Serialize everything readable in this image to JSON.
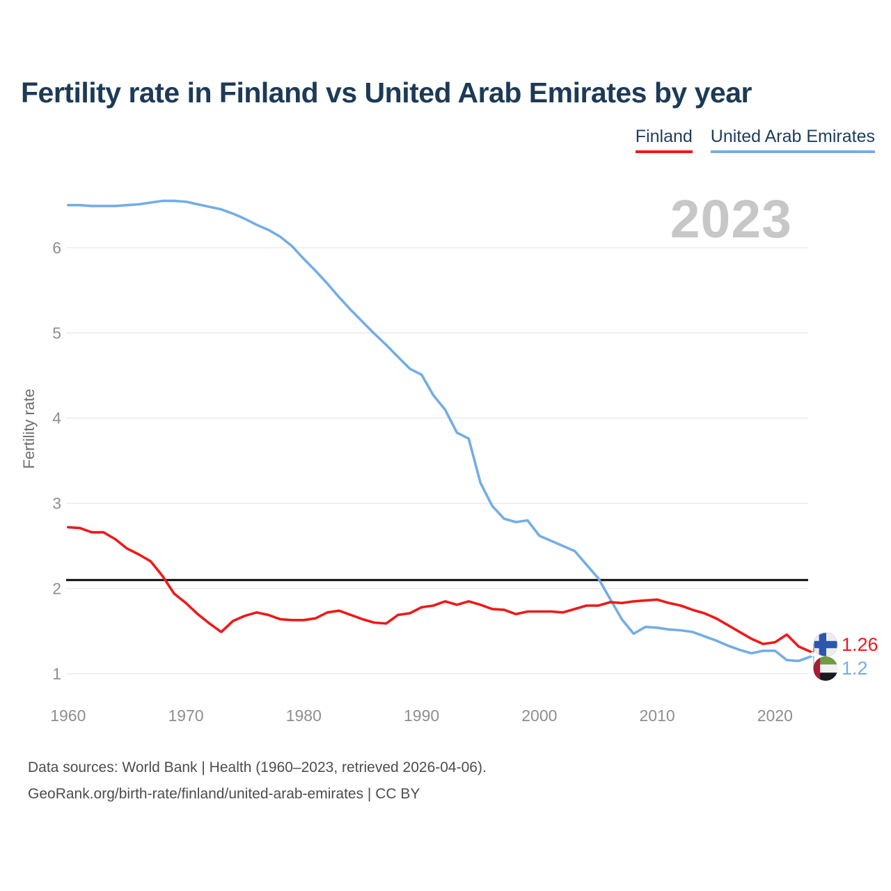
{
  "header": {
    "title": "Fertility rate in Finland vs United Arab Emirates by year"
  },
  "legend": {
    "finland": {
      "label": "Finland"
    },
    "uae": {
      "label": "United Arab Emirates"
    }
  },
  "watermark": "2023",
  "axis": {
    "y_label": "Fertility rate"
  },
  "end_labels": {
    "finland": {
      "value": "1.26",
      "flag": {
        "bg": "#ededed",
        "cross": "#2d56ad",
        "border": "#d9d9d9"
      }
    },
    "uae": {
      "value": "1.2",
      "flag": {
        "band": "#a81c38",
        "green": "#6e9b45",
        "white": "#f2f2f2",
        "black": "#1a1a20"
      }
    }
  },
  "footer": {
    "line1": "Data sources: World Bank | Health (1960–2023, retrieved 2026-04-06).",
    "line2": "GeoRank.org/birth-rate/finland/united-arab-emirates | CC BY"
  },
  "chart_data": {
    "type": "line",
    "title": "Fertility rate in Finland vs United Arab Emirates by year",
    "xlabel": "",
    "ylabel": "Fertility rate",
    "xlim": [
      1960,
      2023
    ],
    "ylim": [
      0.8,
      6.8
    ],
    "grid": true,
    "legend_position": "top-right",
    "x_ticks": [
      1960,
      1970,
      1980,
      1990,
      2000,
      2010,
      2020
    ],
    "y_ticks": [
      1,
      2,
      3,
      4,
      5,
      6
    ],
    "reference_line": {
      "value": 2.1,
      "color": "#0a0a0a"
    },
    "x": [
      1960,
      1961,
      1962,
      1963,
      1964,
      1965,
      1966,
      1967,
      1968,
      1969,
      1970,
      1971,
      1972,
      1973,
      1974,
      1975,
      1976,
      1977,
      1978,
      1979,
      1980,
      1981,
      1982,
      1983,
      1984,
      1985,
      1986,
      1987,
      1988,
      1989,
      1990,
      1991,
      1992,
      1993,
      1994,
      1995,
      1996,
      1997,
      1998,
      1999,
      2000,
      2001,
      2002,
      2003,
      2004,
      2005,
      2006,
      2007,
      2008,
      2009,
      2010,
      2011,
      2012,
      2013,
      2014,
      2015,
      2016,
      2017,
      2018,
      2019,
      2020,
      2021,
      2022,
      2023
    ],
    "series": [
      {
        "name": "United Arab Emirates",
        "color": "#73ade4",
        "end_value": 1.2,
        "values": [
          6.5,
          6.5,
          6.49,
          6.49,
          6.49,
          6.5,
          6.51,
          6.53,
          6.55,
          6.55,
          6.54,
          6.51,
          6.48,
          6.45,
          6.4,
          6.34,
          6.27,
          6.21,
          6.13,
          6.02,
          5.87,
          5.73,
          5.58,
          5.42,
          5.27,
          5.13,
          4.99,
          4.86,
          4.72,
          4.58,
          4.51,
          4.27,
          4.1,
          3.83,
          3.76,
          3.24,
          2.97,
          2.82,
          2.78,
          2.8,
          2.62,
          2.56,
          2.5,
          2.44,
          2.28,
          2.12,
          1.88,
          1.64,
          1.47,
          1.55,
          1.54,
          1.52,
          1.51,
          1.49,
          1.44,
          1.39,
          1.33,
          1.28,
          1.24,
          1.27,
          1.27,
          1.16,
          1.15,
          1.2
        ]
      },
      {
        "name": "Finland",
        "color": "#f01818",
        "end_value": 1.26,
        "values": [
          2.72,
          2.71,
          2.66,
          2.66,
          2.58,
          2.47,
          2.4,
          2.32,
          2.15,
          1.94,
          1.83,
          1.7,
          1.59,
          1.49,
          1.62,
          1.68,
          1.72,
          1.69,
          1.64,
          1.63,
          1.63,
          1.65,
          1.72,
          1.74,
          1.69,
          1.64,
          1.6,
          1.59,
          1.69,
          1.71,
          1.78,
          1.8,
          1.85,
          1.81,
          1.85,
          1.81,
          1.76,
          1.75,
          1.7,
          1.73,
          1.73,
          1.73,
          1.72,
          1.76,
          1.8,
          1.8,
          1.84,
          1.83,
          1.85,
          1.86,
          1.87,
          1.83,
          1.8,
          1.75,
          1.71,
          1.65,
          1.57,
          1.49,
          1.41,
          1.35,
          1.37,
          1.46,
          1.32,
          1.26
        ]
      }
    ]
  }
}
